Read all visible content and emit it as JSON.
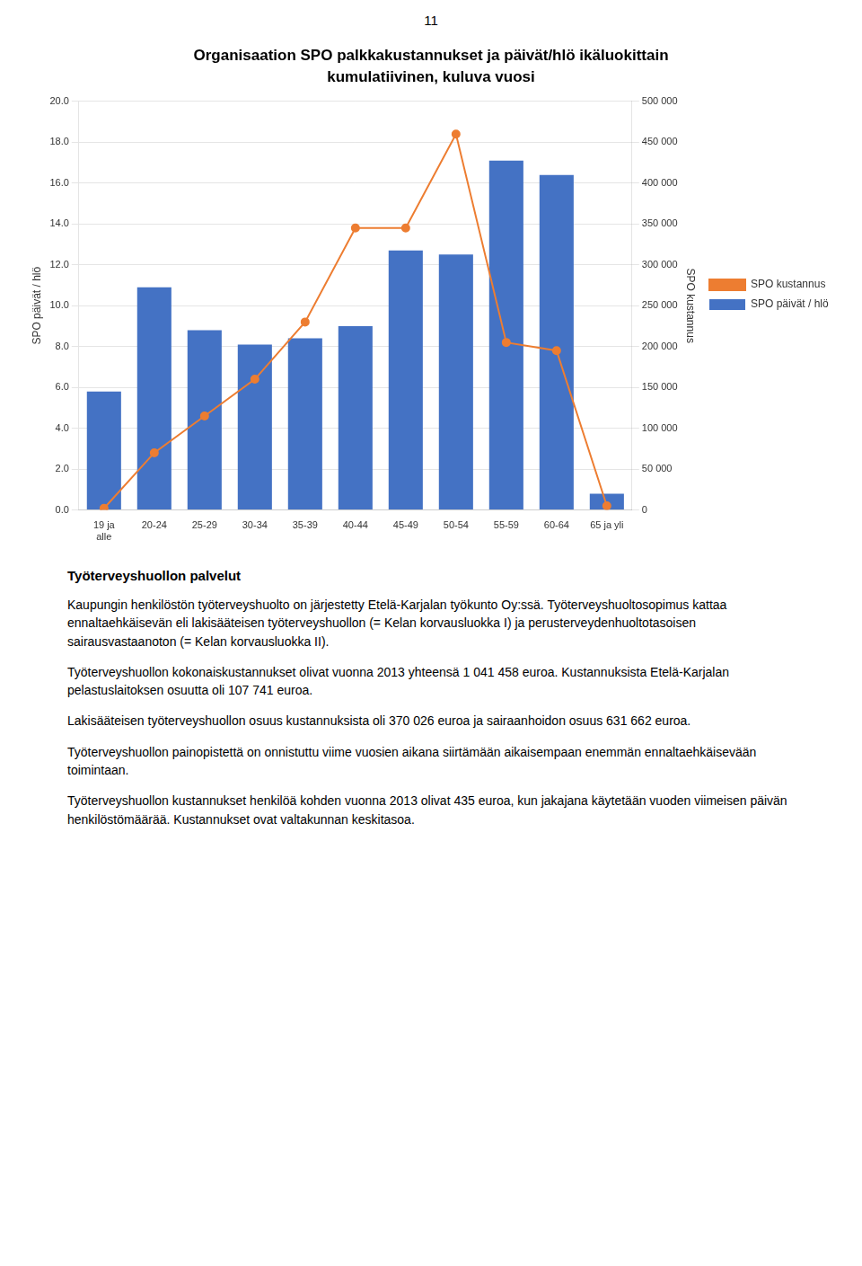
{
  "chart_data": {
    "type": "bar",
    "title": "Organisaation SPO palkkakustannukset ja päivät/hlö ikäluokittain",
    "subtitle": "kumulatiivinen, kuluva vuosi",
    "categories": [
      "19 ja\nalle",
      "20-24",
      "25-29",
      "30-34",
      "35-39",
      "40-44",
      "45-49",
      "50-54",
      "55-59",
      "60-64",
      "65 ja yli"
    ],
    "series": [
      {
        "name": "SPO päivät / hlö",
        "type": "bar",
        "color": "#4472C4",
        "values": [
          5.8,
          10.9,
          8.8,
          8.1,
          8.4,
          9.0,
          12.7,
          12.5,
          17.1,
          16.4,
          0.8
        ]
      },
      {
        "name": "SPO kustannus",
        "type": "line",
        "color": "#ED7D31",
        "marker": "circle",
        "axis": "y2",
        "values": [
          2000,
          70000,
          115000,
          160000,
          230000,
          345000,
          345000,
          460000,
          205000,
          195000,
          5000
        ]
      }
    ],
    "ylabel": "SPO päivät / hlö",
    "y2label": "SPO kustannus",
    "ylim": [
      0,
      20.0
    ],
    "yticks": [
      {
        "value": 0.0,
        "label": "0.0"
      },
      {
        "value": 2.0,
        "label": "2.0"
      },
      {
        "value": 4.0,
        "label": "4.0"
      },
      {
        "value": 6.0,
        "label": "6.0"
      },
      {
        "value": 8.0,
        "label": "8.0"
      },
      {
        "value": 10.0,
        "label": "10.0"
      },
      {
        "value": 12.0,
        "label": "12.0"
      },
      {
        "value": 14.0,
        "label": "14.0"
      },
      {
        "value": 16.0,
        "label": "16.0"
      },
      {
        "value": 18.0,
        "label": "18.0"
      },
      {
        "value": 20.0,
        "label": "20.0"
      }
    ],
    "y2lim": [
      0,
      500000
    ],
    "y2ticks": [
      0,
      {
        "value": 50000,
        "label": "50 000"
      },
      {
        "value": 100000,
        "label": "100 000"
      },
      {
        "value": 150000,
        "label": "150 000"
      },
      {
        "value": 200000,
        "label": "200 000"
      },
      {
        "value": 250000,
        "label": "250 000"
      },
      {
        "value": 300000,
        "label": "300 000"
      },
      {
        "value": 350000,
        "label": "350 000"
      },
      {
        "value": 400000,
        "label": "400 000"
      },
      {
        "value": 450000,
        "label": "450 000"
      },
      {
        "value": 500000,
        "label": "500 000"
      }
    ],
    "grid": true,
    "legend": "right"
  },
  "page_number": "11",
  "heading": "Työterveyshuollon palvelut",
  "paragraphs": [
    "Kaupungin henkilöstön työterveyshuolto on järjestetty Etelä-Karjalan työkunto Oy:ssä. Työterveyshuoltosopimus kattaa ennaltaehkäisevän eli lakisääteisen työterveyshuollon (= Kelan korvausluokka I) ja perusterveydenhuoltotasoisen sairausvastaanoton (= Kelan korvausluokka II).",
    "Työterveyshuollon kokonaiskustannukset olivat vuonna 2013 yhteensä 1 041 458 euroa. Kustannuksista Etelä-Karjalan pelastuslaitoksen osuutta oli 107 741 euroa.",
    "Lakisääteisen työterveyshuollon osuus kustannuksista oli 370 026 euroa ja sairaanhoidon osuus 631 662 euroa.",
    "Työterveyshuollon painopistettä on onnistuttu viime vuosien aikana siirtämään aikaisempaan enemmän ennaltaehkäisevään toimintaan.",
    "Työterveyshuollon kustannukset henkilöä kohden vuonna 2013 olivat 435 euroa, kun jakajana käytetään vuoden viimeisen päivän henkilöstömäärää. Kustannukset ovat valtakunnan keskitasoa."
  ]
}
